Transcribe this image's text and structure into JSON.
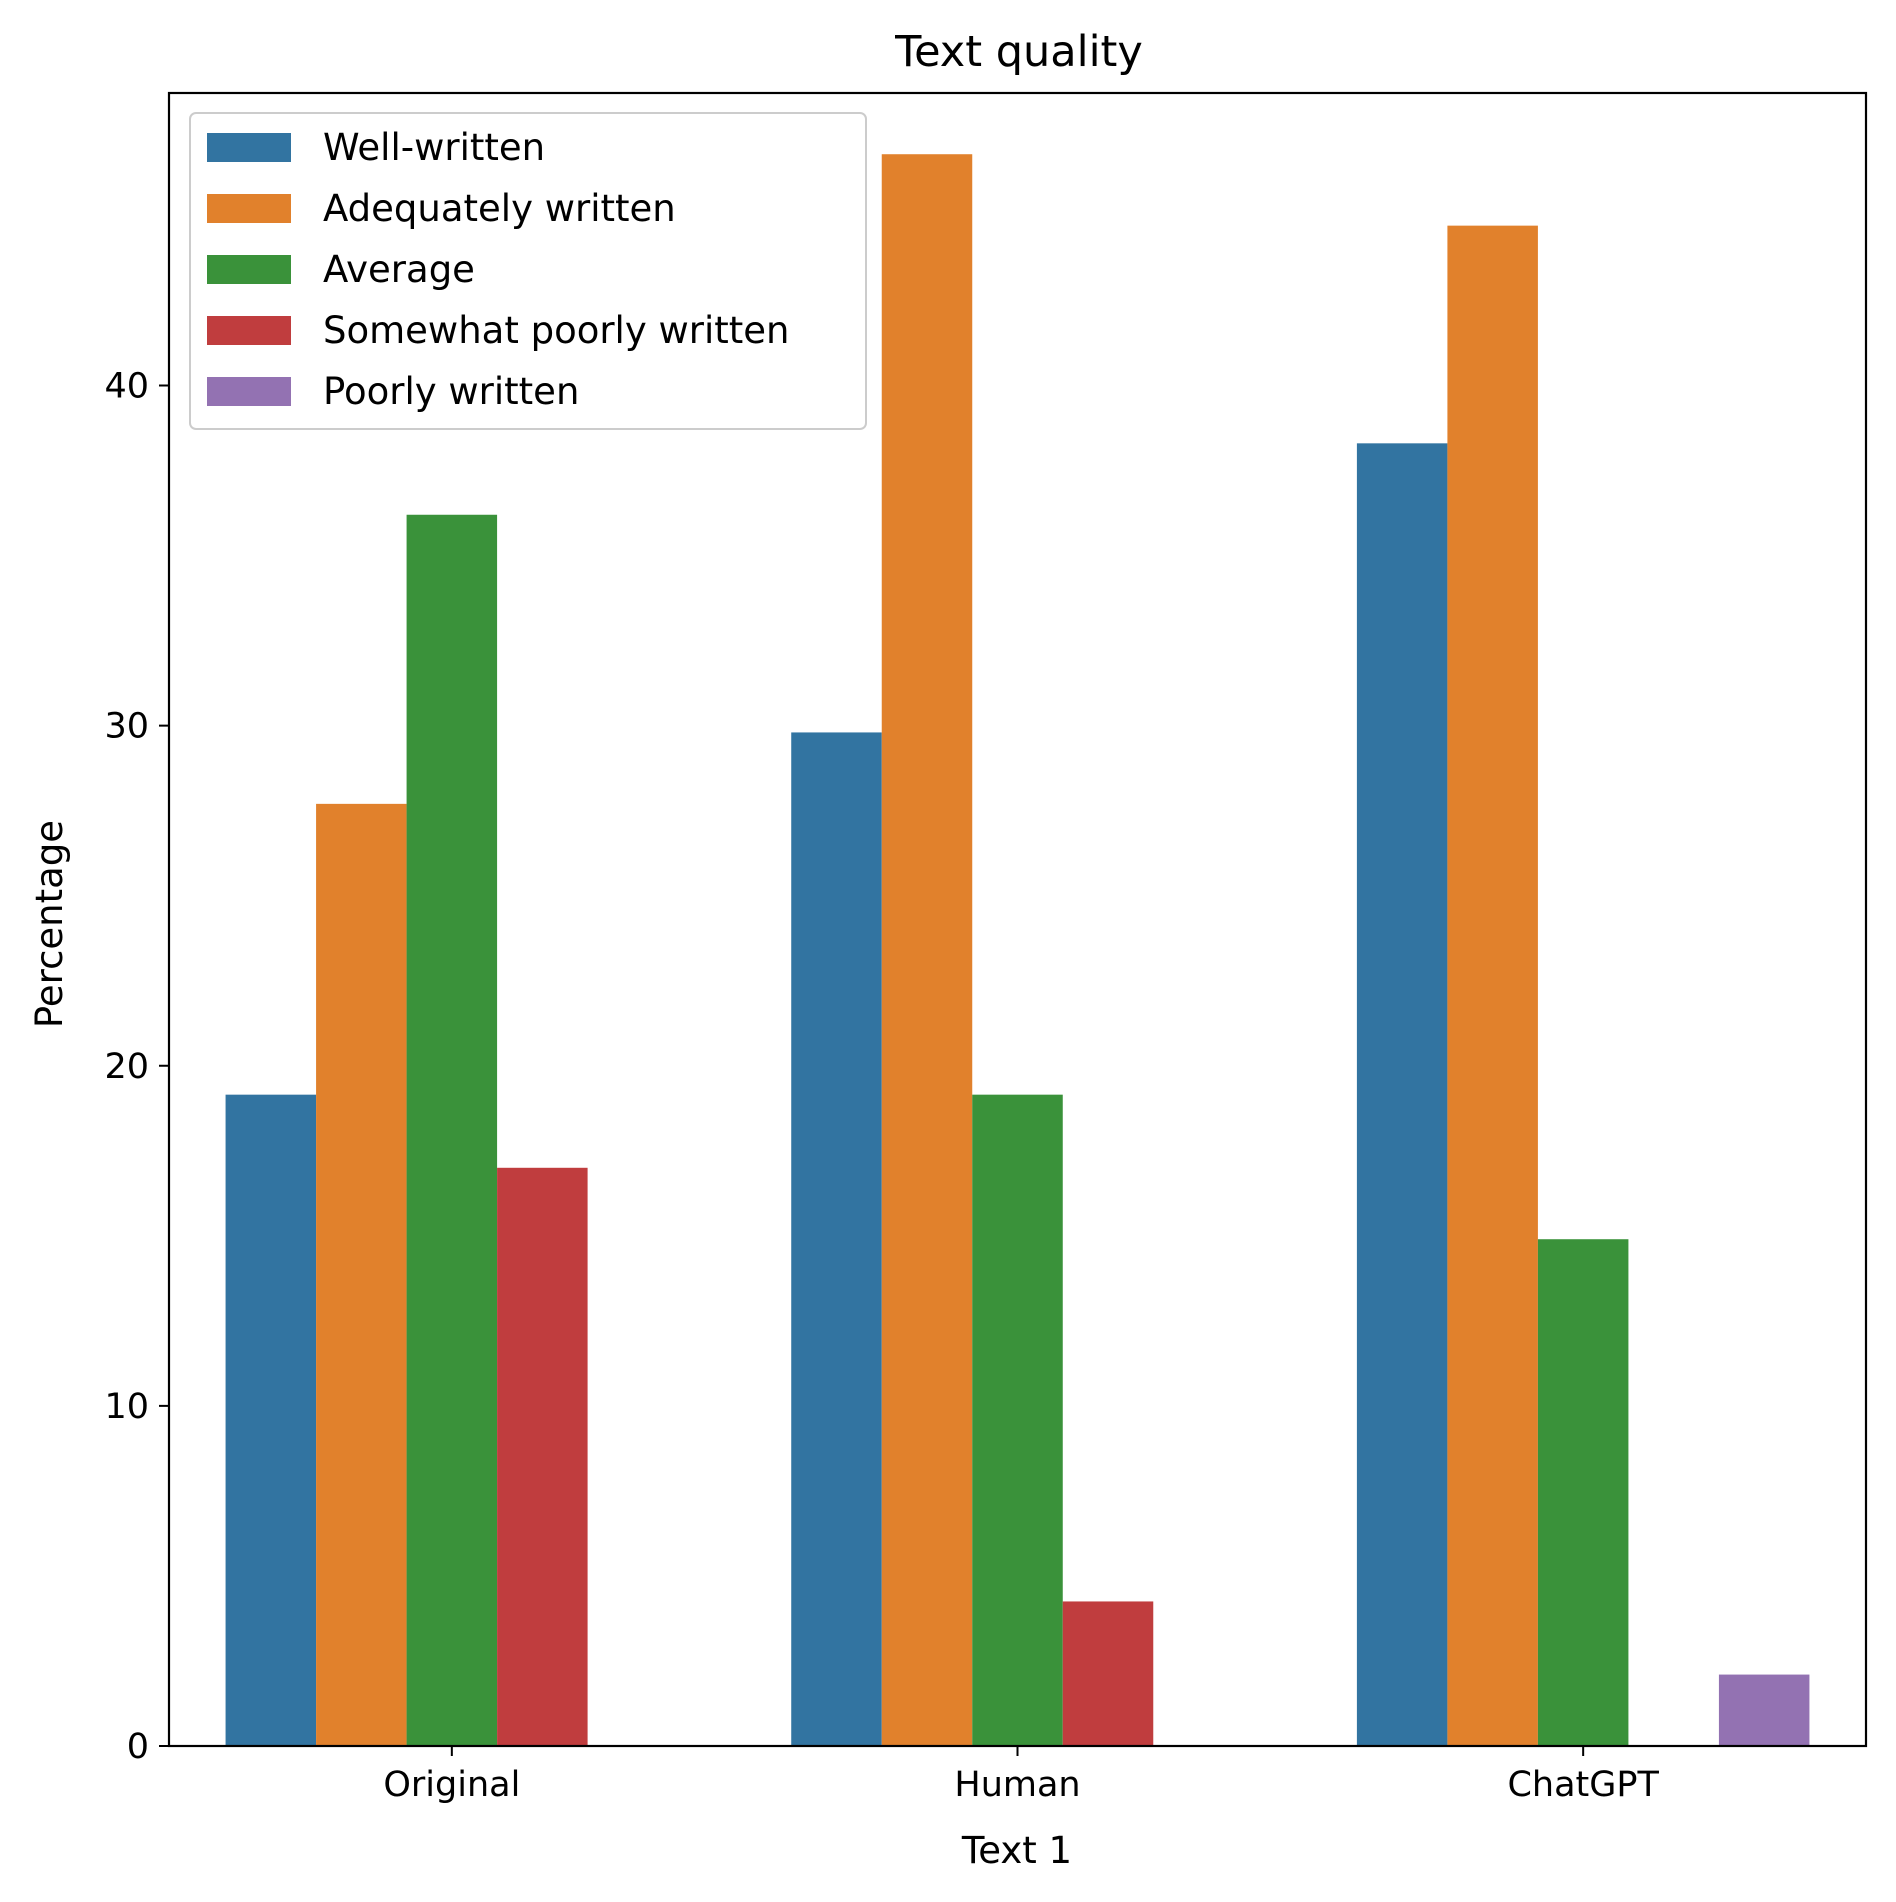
{
  "chart_data": {
    "type": "bar",
    "title": "Text quality",
    "xlabel": "Text 1",
    "ylabel": "Percentage",
    "categories": [
      "Original",
      "Human",
      "ChatGPT"
    ],
    "ylim": [
      0,
      48.6
    ],
    "yticks": [
      0,
      10,
      20,
      30,
      40
    ],
    "grid": false,
    "legend_position": "top-left",
    "series": [
      {
        "name": "Well-written",
        "color": "#3274a1",
        "values": [
          19.15,
          29.8,
          38.3
        ]
      },
      {
        "name": "Adequately written",
        "color": "#e1812c",
        "values": [
          27.7,
          46.8,
          44.7
        ]
      },
      {
        "name": "Average",
        "color": "#3a923a",
        "values": [
          36.2,
          19.15,
          14.9
        ]
      },
      {
        "name": "Somewhat poorly written",
        "color": "#c03d3e",
        "values": [
          17.0,
          4.25,
          0
        ]
      },
      {
        "name": "Poorly written",
        "color": "#9372b2",
        "values": [
          0,
          0,
          2.1
        ]
      }
    ]
  }
}
